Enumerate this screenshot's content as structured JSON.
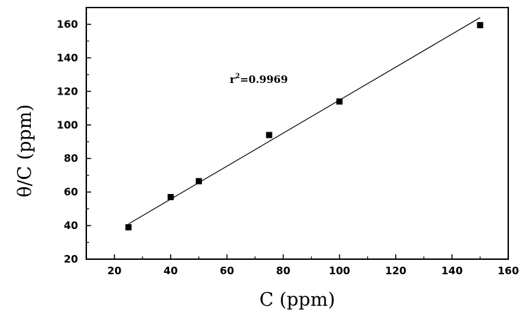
{
  "chart_data": {
    "type": "scatter",
    "title": "",
    "xlabel": "C (ppm)",
    "ylabel": "θ/C (ppm)",
    "xlim": [
      10,
      160
    ],
    "ylim": [
      20,
      170
    ],
    "x_ticks": [
      20,
      40,
      60,
      80,
      100,
      120,
      140,
      160
    ],
    "y_ticks": [
      20,
      40,
      60,
      80,
      100,
      120,
      140,
      160
    ],
    "grid": false,
    "legend": "none",
    "marker": "square",
    "marker_color": "#000000",
    "line_color": "#000000",
    "series": [
      {
        "x": [
          25,
          40,
          50,
          75,
          100,
          150
        ],
        "y": [
          39,
          57,
          66.5,
          94,
          114,
          159.5
        ]
      }
    ],
    "fit_line": {
      "x": [
        25,
        150
      ],
      "y": [
        41,
        164
      ]
    },
    "annotation": {
      "text_prefix": "r",
      "text_superscript": "2",
      "text_suffix": "=0.9969",
      "x": 61,
      "y": 125
    }
  }
}
